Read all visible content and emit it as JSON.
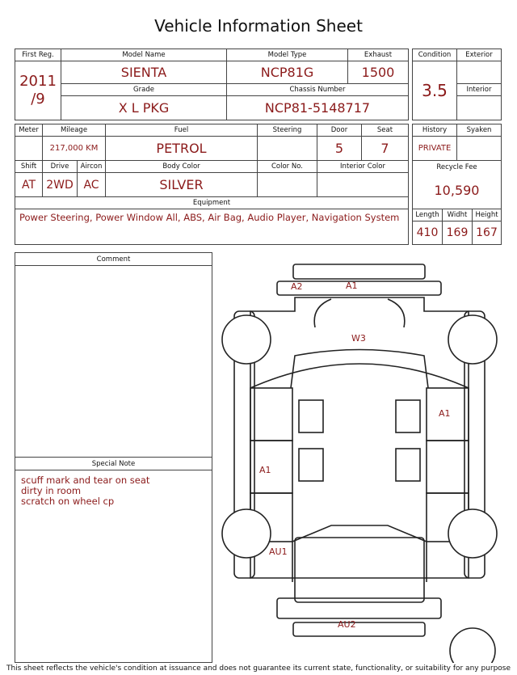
{
  "title": "Vehicle Information Sheet",
  "first_reg": {
    "label": "First Reg.",
    "value": [
      "2011",
      "/9"
    ]
  },
  "model_name": {
    "label": "Model Name",
    "value": "SIENTA"
  },
  "model_type": {
    "label": "Model Type",
    "value": "NCP81G"
  },
  "exhaust": {
    "label": "Exhaust",
    "value": "1500"
  },
  "grade": {
    "label": "Grade",
    "value": "X L PKG"
  },
  "chassis": {
    "label": "Chassis Number",
    "value": "NCP81-5148717"
  },
  "condition": {
    "label": "Condition",
    "value": "3.5",
    "exterior": "Exterior",
    "interior": "Interior"
  },
  "meter": {
    "label": "Meter"
  },
  "mileage": {
    "label": "Mileage",
    "value": "217,000 KM"
  },
  "fuel": {
    "label": "Fuel",
    "value": "PETROL"
  },
  "steering": {
    "label": "Steering"
  },
  "door": {
    "label": "Door",
    "value": "5"
  },
  "seat": {
    "label": "Seat",
    "value": "7"
  },
  "history": {
    "label": "History",
    "value": "PRIVATE"
  },
  "syaken": {
    "label": "Syaken"
  },
  "shift": {
    "label": "Shift",
    "value": "AT"
  },
  "drive": {
    "label": "Drive",
    "value": "2WD"
  },
  "aircon": {
    "label": "Aircon",
    "value": "AC"
  },
  "body_color": {
    "label": "Body Color",
    "value": "SILVER"
  },
  "color_no": {
    "label": "Color No."
  },
  "interior_color": {
    "label": "Interior Color"
  },
  "recycle_fee": {
    "label": "Recycle Fee",
    "value": "10,590"
  },
  "equipment": {
    "label": "Equipment",
    "value": "Power Steering, Power Window  All, ABS, Air Bag, Audio Player, Navigation System"
  },
  "length": {
    "label": "Length",
    "value": "410"
  },
  "width": {
    "label": "Widht",
    "value": "169"
  },
  "height": {
    "label": "Height",
    "value": "167"
  },
  "comment": {
    "label": "Comment"
  },
  "special_note": {
    "label": "Special Note",
    "lines": [
      "scuff mark and tear on seat",
      "dirty in room",
      "scratch on wheel cp"
    ]
  },
  "diagram": {
    "marks": [
      "A2",
      "A1",
      "W3",
      "A1",
      "A1",
      "AU1",
      "AU2"
    ]
  },
  "footer": "This sheet reflects the vehicle's condition at issuance and does not guarantee its current state, functionality, or suitability for any purpose"
}
